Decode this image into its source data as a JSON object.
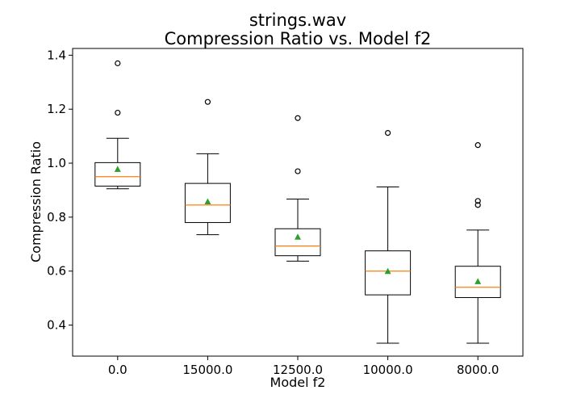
{
  "chart_data": {
    "type": "box",
    "title": "strings.wav",
    "subtitle": "Compression Ratio vs. Model f2",
    "xlabel": "Model f2",
    "ylabel": "Compression Ratio",
    "categories": [
      "0.0",
      "15000.0",
      "12500.0",
      "10000.0",
      "8000.0"
    ],
    "ylim": [
      0.285,
      1.425
    ],
    "yticks": [
      0.4,
      0.6,
      0.8,
      1.0,
      1.2,
      1.4
    ],
    "ytick_labels": [
      "0.4",
      "0.6",
      "0.8",
      "1.0",
      "1.2",
      "1.4"
    ],
    "grid": false,
    "colors": {
      "box": "#000000",
      "median": "#ff7f0e",
      "mean": "#2ca02c"
    },
    "boxes": [
      {
        "whisker_low": 0.905,
        "q1": 0.915,
        "median": 0.95,
        "q3": 1.002,
        "whisker_high": 1.092,
        "mean": 0.978,
        "outliers": [
          1.187,
          1.37
        ]
      },
      {
        "whisker_low": 0.735,
        "q1": 0.78,
        "median": 0.845,
        "q3": 0.925,
        "whisker_high": 1.035,
        "mean": 0.858,
        "outliers": [
          1.227
        ]
      },
      {
        "whisker_low": 0.637,
        "q1": 0.657,
        "median": 0.693,
        "q3": 0.757,
        "whisker_high": 0.867,
        "mean": 0.727,
        "outliers": [
          0.97,
          1.167
        ]
      },
      {
        "whisker_low": 0.333,
        "q1": 0.512,
        "median": 0.6,
        "q3": 0.675,
        "whisker_high": 0.912,
        "mean": 0.6,
        "outliers": [
          1.112
        ]
      },
      {
        "whisker_low": 0.333,
        "q1": 0.502,
        "median": 0.54,
        "q3": 0.618,
        "whisker_high": 0.752,
        "mean": 0.562,
        "outliers": [
          0.845,
          0.86,
          1.067
        ]
      }
    ]
  }
}
